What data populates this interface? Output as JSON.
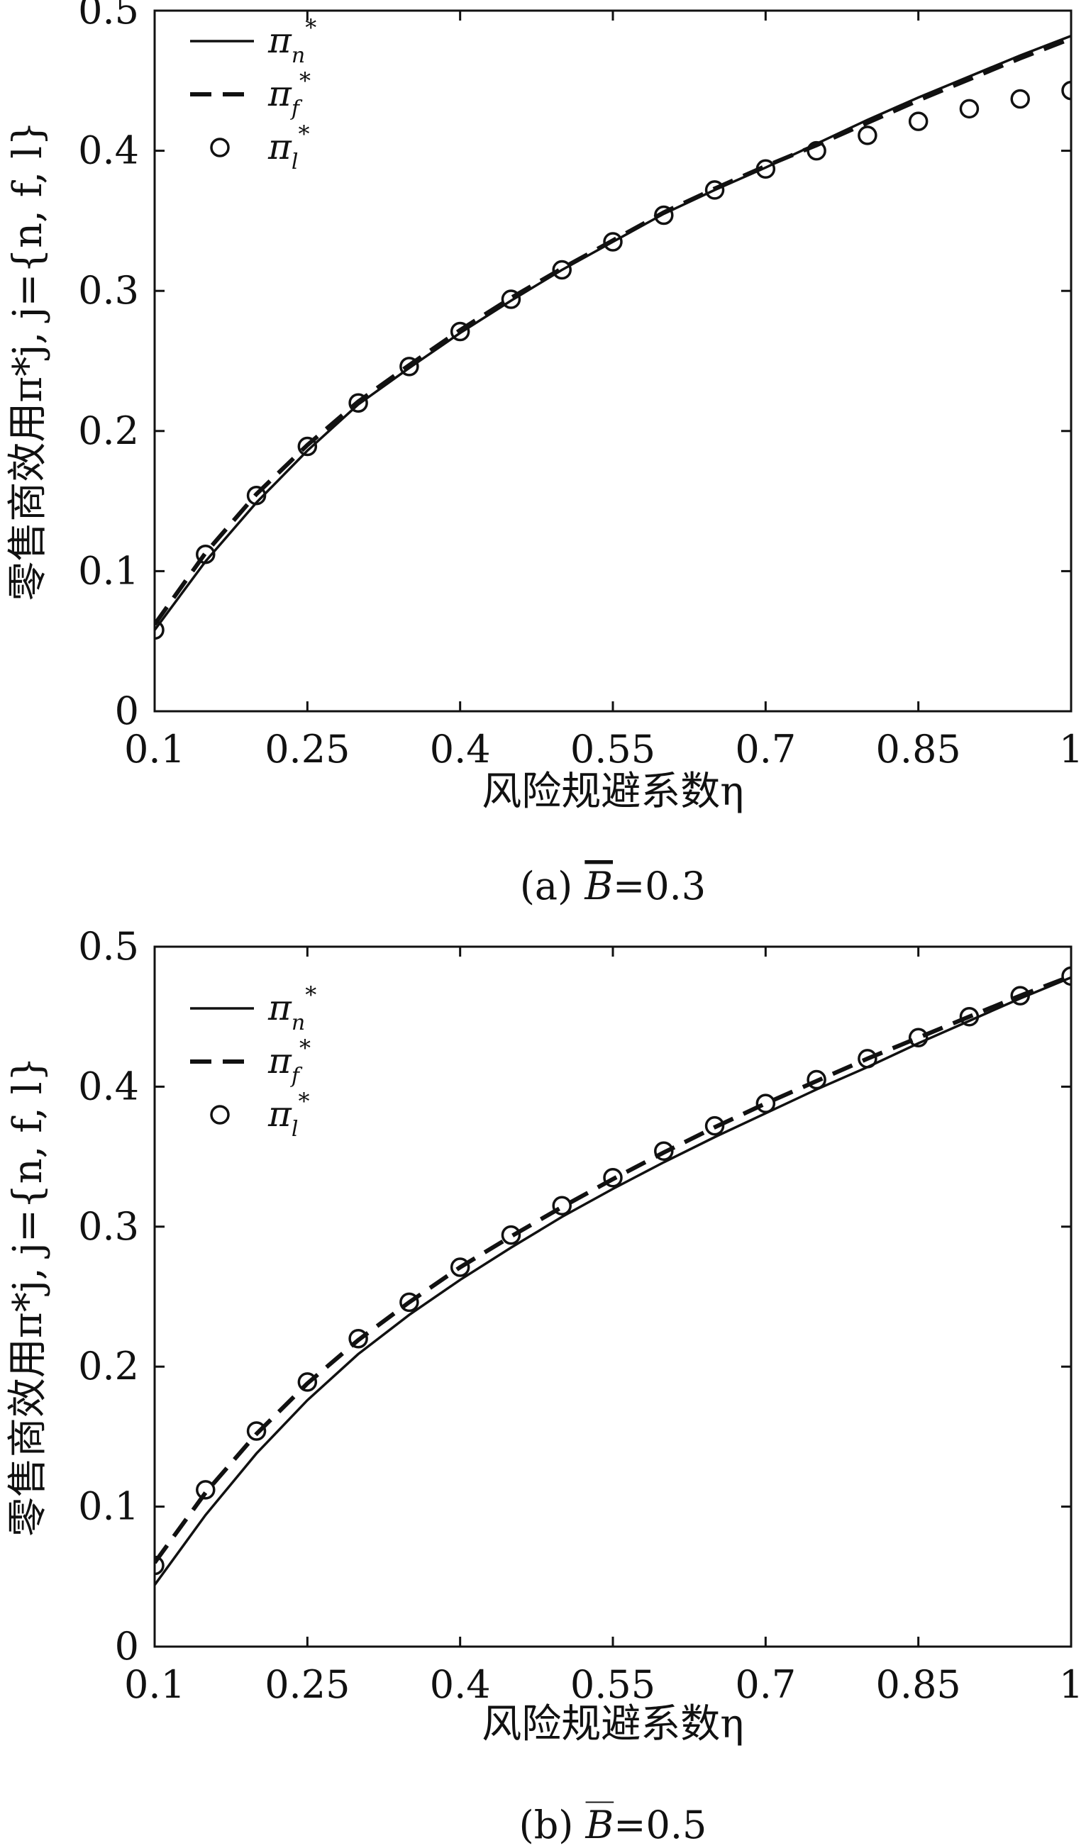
{
  "chart_data": [
    {
      "type": "line",
      "panel": "a",
      "caption_prefix": "(a) ",
      "caption_symbol": "B",
      "caption_suffix": "=0.3",
      "xlabel": "风险规避系数η",
      "ylabel": "零售商效用π*j, j={n, f, l}",
      "xlim": [
        0.1,
        1.0
      ],
      "ylim": [
        0,
        0.5
      ],
      "x_ticks": [
        "0.1",
        "0.25",
        "0.4",
        "0.55",
        "0.7",
        "0.85",
        "1"
      ],
      "x_tick_values": [
        0.1,
        0.25,
        0.4,
        0.55,
        0.7,
        0.85,
        1.0
      ],
      "y_ticks": [
        "0",
        "0.1",
        "0.2",
        "0.3",
        "0.4",
        "0.5"
      ],
      "y_tick_values": [
        0,
        0.1,
        0.2,
        0.3,
        0.4,
        0.5
      ],
      "grid": false,
      "legend_position": "top-left",
      "series": [
        {
          "name": "π",
          "sub": "n",
          "sup": "*",
          "style": "solid",
          "x": [
            0.1,
            0.15,
            0.2,
            0.25,
            0.3,
            0.35,
            0.4,
            0.45,
            0.5,
            0.55,
            0.6,
            0.65,
            0.7,
            0.75,
            0.8,
            0.85,
            0.9,
            0.95,
            1.0
          ],
          "y": [
            0.058,
            0.107,
            0.149,
            0.186,
            0.219,
            0.245,
            0.27,
            0.293,
            0.315,
            0.335,
            0.355,
            0.372,
            0.388,
            0.405,
            0.422,
            0.438,
            0.453,
            0.468,
            0.482
          ]
        },
        {
          "name": "π",
          "sub": "f",
          "sup": "*",
          "style": "dashed",
          "x": [
            0.1,
            0.15,
            0.2,
            0.25,
            0.3,
            0.35,
            0.4,
            0.45,
            0.5,
            0.55,
            0.6,
            0.65,
            0.7,
            0.75,
            0.8,
            0.85,
            0.9,
            0.95,
            1.0
          ],
          "y": [
            0.062,
            0.113,
            0.155,
            0.19,
            0.221,
            0.247,
            0.272,
            0.295,
            0.316,
            0.336,
            0.356,
            0.373,
            0.389,
            0.404,
            0.42,
            0.436,
            0.451,
            0.466,
            0.48
          ]
        },
        {
          "name": "π",
          "sub": "l",
          "sup": "*",
          "style": "markers",
          "x": [
            0.1,
            0.15,
            0.2,
            0.25,
            0.3,
            0.35,
            0.4,
            0.45,
            0.5,
            0.55,
            0.6,
            0.65,
            0.7,
            0.75,
            0.8,
            0.85,
            0.9,
            0.95,
            1.0
          ],
          "y": [
            0.058,
            0.112,
            0.154,
            0.189,
            0.22,
            0.246,
            0.271,
            0.294,
            0.315,
            0.335,
            0.354,
            0.372,
            0.387,
            0.4,
            0.411,
            0.421,
            0.43,
            0.437,
            0.443
          ]
        }
      ]
    },
    {
      "type": "line",
      "panel": "b",
      "caption_prefix": "(b) ",
      "caption_symbol": "B",
      "caption_suffix": "=0.5",
      "xlabel": "风险规避系数η",
      "ylabel": "零售商效用π*j, j={n, f, l}",
      "xlim": [
        0.1,
        1.0
      ],
      "ylim": [
        0,
        0.5
      ],
      "x_ticks": [
        "0.1",
        "0.25",
        "0.4",
        "0.55",
        "0.7",
        "0.85",
        "1"
      ],
      "x_tick_values": [
        0.1,
        0.25,
        0.4,
        0.55,
        0.7,
        0.85,
        1.0
      ],
      "y_ticks": [
        "0",
        "0.1",
        "0.2",
        "0.3",
        "0.4",
        "0.5"
      ],
      "y_tick_values": [
        0,
        0.1,
        0.2,
        0.3,
        0.4,
        0.5
      ],
      "grid": false,
      "legend_position": "top-left",
      "series": [
        {
          "name": "π",
          "sub": "n",
          "sup": "*",
          "style": "solid",
          "x": [
            0.1,
            0.15,
            0.2,
            0.25,
            0.3,
            0.35,
            0.4,
            0.45,
            0.5,
            0.55,
            0.6,
            0.65,
            0.7,
            0.75,
            0.8,
            0.85,
            0.9,
            0.95,
            1.0
          ],
          "y": [
            0.044,
            0.094,
            0.138,
            0.176,
            0.209,
            0.237,
            0.262,
            0.285,
            0.307,
            0.327,
            0.346,
            0.364,
            0.381,
            0.398,
            0.414,
            0.431,
            0.447,
            0.463,
            0.478
          ]
        },
        {
          "name": "π",
          "sub": "f",
          "sup": "*",
          "style": "dashed",
          "x": [
            0.1,
            0.15,
            0.2,
            0.25,
            0.3,
            0.35,
            0.4,
            0.45,
            0.5,
            0.55,
            0.6,
            0.65,
            0.7,
            0.75,
            0.8,
            0.85,
            0.9,
            0.95,
            1.0
          ],
          "y": [
            0.06,
            0.11,
            0.152,
            0.188,
            0.219,
            0.246,
            0.271,
            0.293,
            0.314,
            0.334,
            0.353,
            0.371,
            0.388,
            0.404,
            0.42,
            0.435,
            0.45,
            0.465,
            0.479
          ]
        },
        {
          "name": "π",
          "sub": "l",
          "sup": "*",
          "style": "markers",
          "x": [
            0.1,
            0.15,
            0.2,
            0.25,
            0.3,
            0.35,
            0.4,
            0.45,
            0.5,
            0.55,
            0.6,
            0.65,
            0.7,
            0.75,
            0.8,
            0.85,
            0.9,
            0.95,
            1.0
          ],
          "y": [
            0.058,
            0.112,
            0.154,
            0.189,
            0.22,
            0.246,
            0.271,
            0.294,
            0.315,
            0.335,
            0.354,
            0.372,
            0.388,
            0.405,
            0.42,
            0.435,
            0.45,
            0.465,
            0.479
          ]
        }
      ]
    }
  ]
}
